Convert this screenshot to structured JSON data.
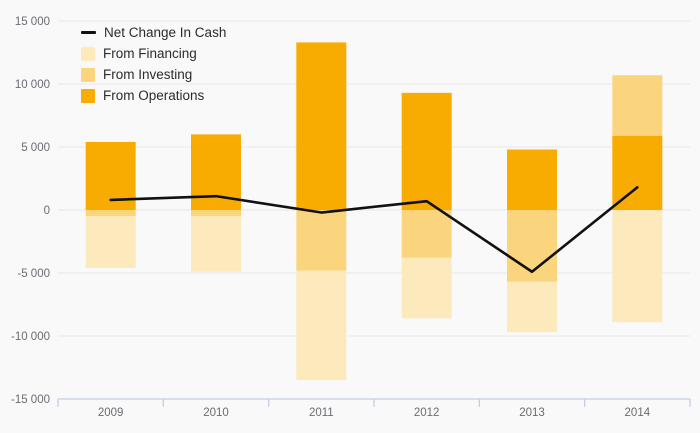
{
  "chart_data": {
    "type": "combo-stacked-bar-line",
    "categories": [
      "2009",
      "2010",
      "2011",
      "2012",
      "2013",
      "2014"
    ],
    "bar_series": [
      {
        "name": "From Financing",
        "color": "#FCEABD",
        "values": [
          -4100,
          -4400,
          -8700,
          -4800,
          -4000,
          -8900
        ]
      },
      {
        "name": "From Investing",
        "color": "#FAD57E",
        "values": [
          -500,
          -500,
          -4800,
          -3800,
          -5700,
          4800
        ]
      },
      {
        "name": "From Operations",
        "color": "#F8AB00",
        "values": [
          5400,
          6000,
          13300,
          9300,
          4800,
          5900
        ]
      }
    ],
    "line_series": {
      "name": "Net Change In Cash",
      "color": "#111111",
      "values": [
        800,
        1100,
        -200,
        700,
        -4900,
        1800
      ]
    },
    "title": "",
    "xlabel": "",
    "ylabel": "",
    "ylim": [
      -15000,
      15000
    ],
    "y_ticks": [
      {
        "value": 15000,
        "label": "15 000"
      },
      {
        "value": 10000,
        "label": "10 000"
      },
      {
        "value": 5000,
        "label": "5 000"
      },
      {
        "value": 0,
        "label": "0"
      },
      {
        "value": -5000,
        "label": "-5 000"
      },
      {
        "value": -10000,
        "label": "-10 000"
      },
      {
        "value": -15000,
        "label": "-15 000"
      }
    ],
    "grid": true,
    "legend_position": "top-left",
    "stack_order": "operations-first",
    "colors": {
      "background": "#f9f9f9",
      "gridline": "#e8e8e8",
      "axis_line": "#c6cde5",
      "tick_label": "#6b6b74"
    }
  }
}
